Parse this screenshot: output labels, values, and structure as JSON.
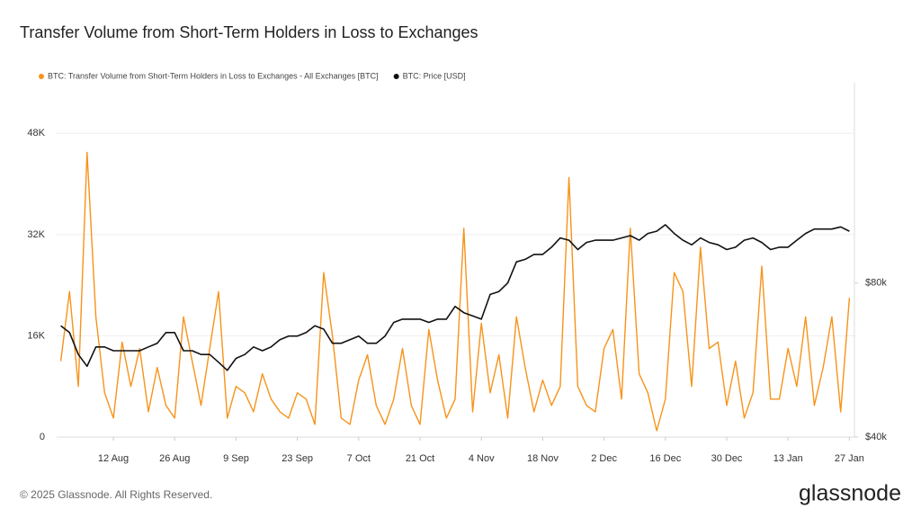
{
  "chart_data": {
    "type": "line",
    "title": "Transfer Volume from Short-Term Holders in Loss to Exchanges",
    "footer": "© 2025 Glassnode. All Rights Reserved.",
    "brand": "glassnode",
    "x": [
      "31 Jul",
      "2 Aug",
      "4 Aug",
      "6 Aug",
      "8 Aug",
      "10 Aug",
      "12 Aug",
      "14 Aug",
      "16 Aug",
      "18 Aug",
      "20 Aug",
      "22 Aug",
      "24 Aug",
      "26 Aug",
      "28 Aug",
      "30 Aug",
      "1 Sep",
      "3 Sep",
      "5 Sep",
      "7 Sep",
      "9 Sep",
      "11 Sep",
      "13 Sep",
      "15 Sep",
      "17 Sep",
      "19 Sep",
      "21 Sep",
      "23 Sep",
      "25 Sep",
      "27 Sep",
      "29 Sep",
      "1 Oct",
      "3 Oct",
      "5 Oct",
      "7 Oct",
      "9 Oct",
      "11 Oct",
      "13 Oct",
      "15 Oct",
      "17 Oct",
      "19 Oct",
      "21 Oct",
      "23 Oct",
      "25 Oct",
      "27 Oct",
      "29 Oct",
      "31 Oct",
      "2 Nov",
      "4 Nov",
      "6 Nov",
      "8 Nov",
      "10 Nov",
      "12 Nov",
      "14 Nov",
      "16 Nov",
      "18 Nov",
      "20 Nov",
      "22 Nov",
      "24 Nov",
      "26 Nov",
      "28 Nov",
      "30 Nov",
      "2 Dec",
      "4 Dec",
      "6 Dec",
      "8 Dec",
      "10 Dec",
      "12 Dec",
      "14 Dec",
      "16 Dec",
      "18 Dec",
      "20 Dec",
      "22 Dec",
      "24 Dec",
      "26 Dec",
      "28 Dec",
      "30 Dec",
      "1 Jan",
      "3 Jan",
      "5 Jan",
      "7 Jan",
      "9 Jan",
      "11 Jan",
      "13 Jan",
      "15 Jan",
      "17 Jan",
      "19 Jan",
      "21 Jan",
      "23 Jan",
      "25 Jan",
      "27 Jan"
    ],
    "xticks": [
      "12 Aug",
      "26 Aug",
      "9 Sep",
      "23 Sep",
      "7 Oct",
      "21 Oct",
      "4 Nov",
      "18 Nov",
      "2 Dec",
      "16 Dec",
      "30 Dec",
      "13 Jan",
      "27 Jan"
    ],
    "series": [
      {
        "name": "BTC: Transfer Volume from Short-Term Holders in Loss to Exchanges - All Exchanges [BTC]",
        "color": "#f7931a",
        "axis": "y",
        "values": [
          12000,
          23000,
          8000,
          45000,
          19000,
          7000,
          3000,
          15000,
          8000,
          14000,
          4000,
          11000,
          5000,
          3000,
          19000,
          12000,
          5000,
          14000,
          23000,
          3000,
          8000,
          7000,
          4000,
          10000,
          6000,
          4000,
          3000,
          7000,
          6000,
          2000,
          26000,
          16000,
          3000,
          2000,
          9000,
          13000,
          5000,
          2000,
          6000,
          14000,
          5000,
          2000,
          17000,
          9000,
          3000,
          6000,
          33000,
          4000,
          18000,
          7000,
          13000,
          3000,
          19000,
          11000,
          4000,
          9000,
          5000,
          8000,
          41000,
          8000,
          5000,
          4000,
          14000,
          17000,
          6000,
          33000,
          10000,
          7000,
          1000,
          6000,
          26000,
          23000,
          8000,
          30000,
          14000,
          15000,
          5000,
          12000,
          3000,
          7000,
          27000,
          6000,
          6000,
          14000,
          8000,
          19000,
          5000,
          11000,
          19000,
          4000,
          22000
        ]
      },
      {
        "name": "BTC: Price [USD]",
        "color": "#111111",
        "axis": "y2",
        "values": [
          66000,
          64000,
          58000,
          55000,
          60000,
          60000,
          59000,
          59000,
          59000,
          59000,
          60000,
          61000,
          64000,
          64000,
          59000,
          59000,
          58000,
          58000,
          56000,
          54000,
          57000,
          58000,
          60000,
          59000,
          60000,
          62000,
          63000,
          63000,
          64000,
          66000,
          65000,
          61000,
          61000,
          62000,
          63000,
          61000,
          61000,
          63000,
          67000,
          68000,
          68000,
          68000,
          67000,
          68000,
          68000,
          72000,
          70000,
          69000,
          68000,
          76000,
          77000,
          80000,
          88000,
          89000,
          91000,
          91000,
          94000,
          98000,
          97000,
          93000,
          96000,
          97000,
          97000,
          97000,
          98000,
          99000,
          97000,
          100000,
          101000,
          104000,
          100000,
          97000,
          95000,
          98000,
          96000,
          95000,
          93000,
          94000,
          97000,
          98000,
          96000,
          93000,
          94000,
          94000,
          97000,
          100000,
          102000,
          102000,
          102000,
          103000,
          101000
        ]
      }
    ],
    "ylim": [
      0,
      56000
    ],
    "yticks": [
      0,
      {
        "value": 16000,
        "label": "16K"
      },
      {
        "value": 32000,
        "label": "32K"
      },
      {
        "value": 48000,
        "label": "48K"
      }
    ],
    "y2lim": [
      40000,
      197000
    ],
    "y2log": true,
    "y2ticks": [
      {
        "value": 40000,
        "label": "$40k"
      },
      {
        "value": 80000,
        "label": "$80k"
      }
    ],
    "grid": true
  }
}
